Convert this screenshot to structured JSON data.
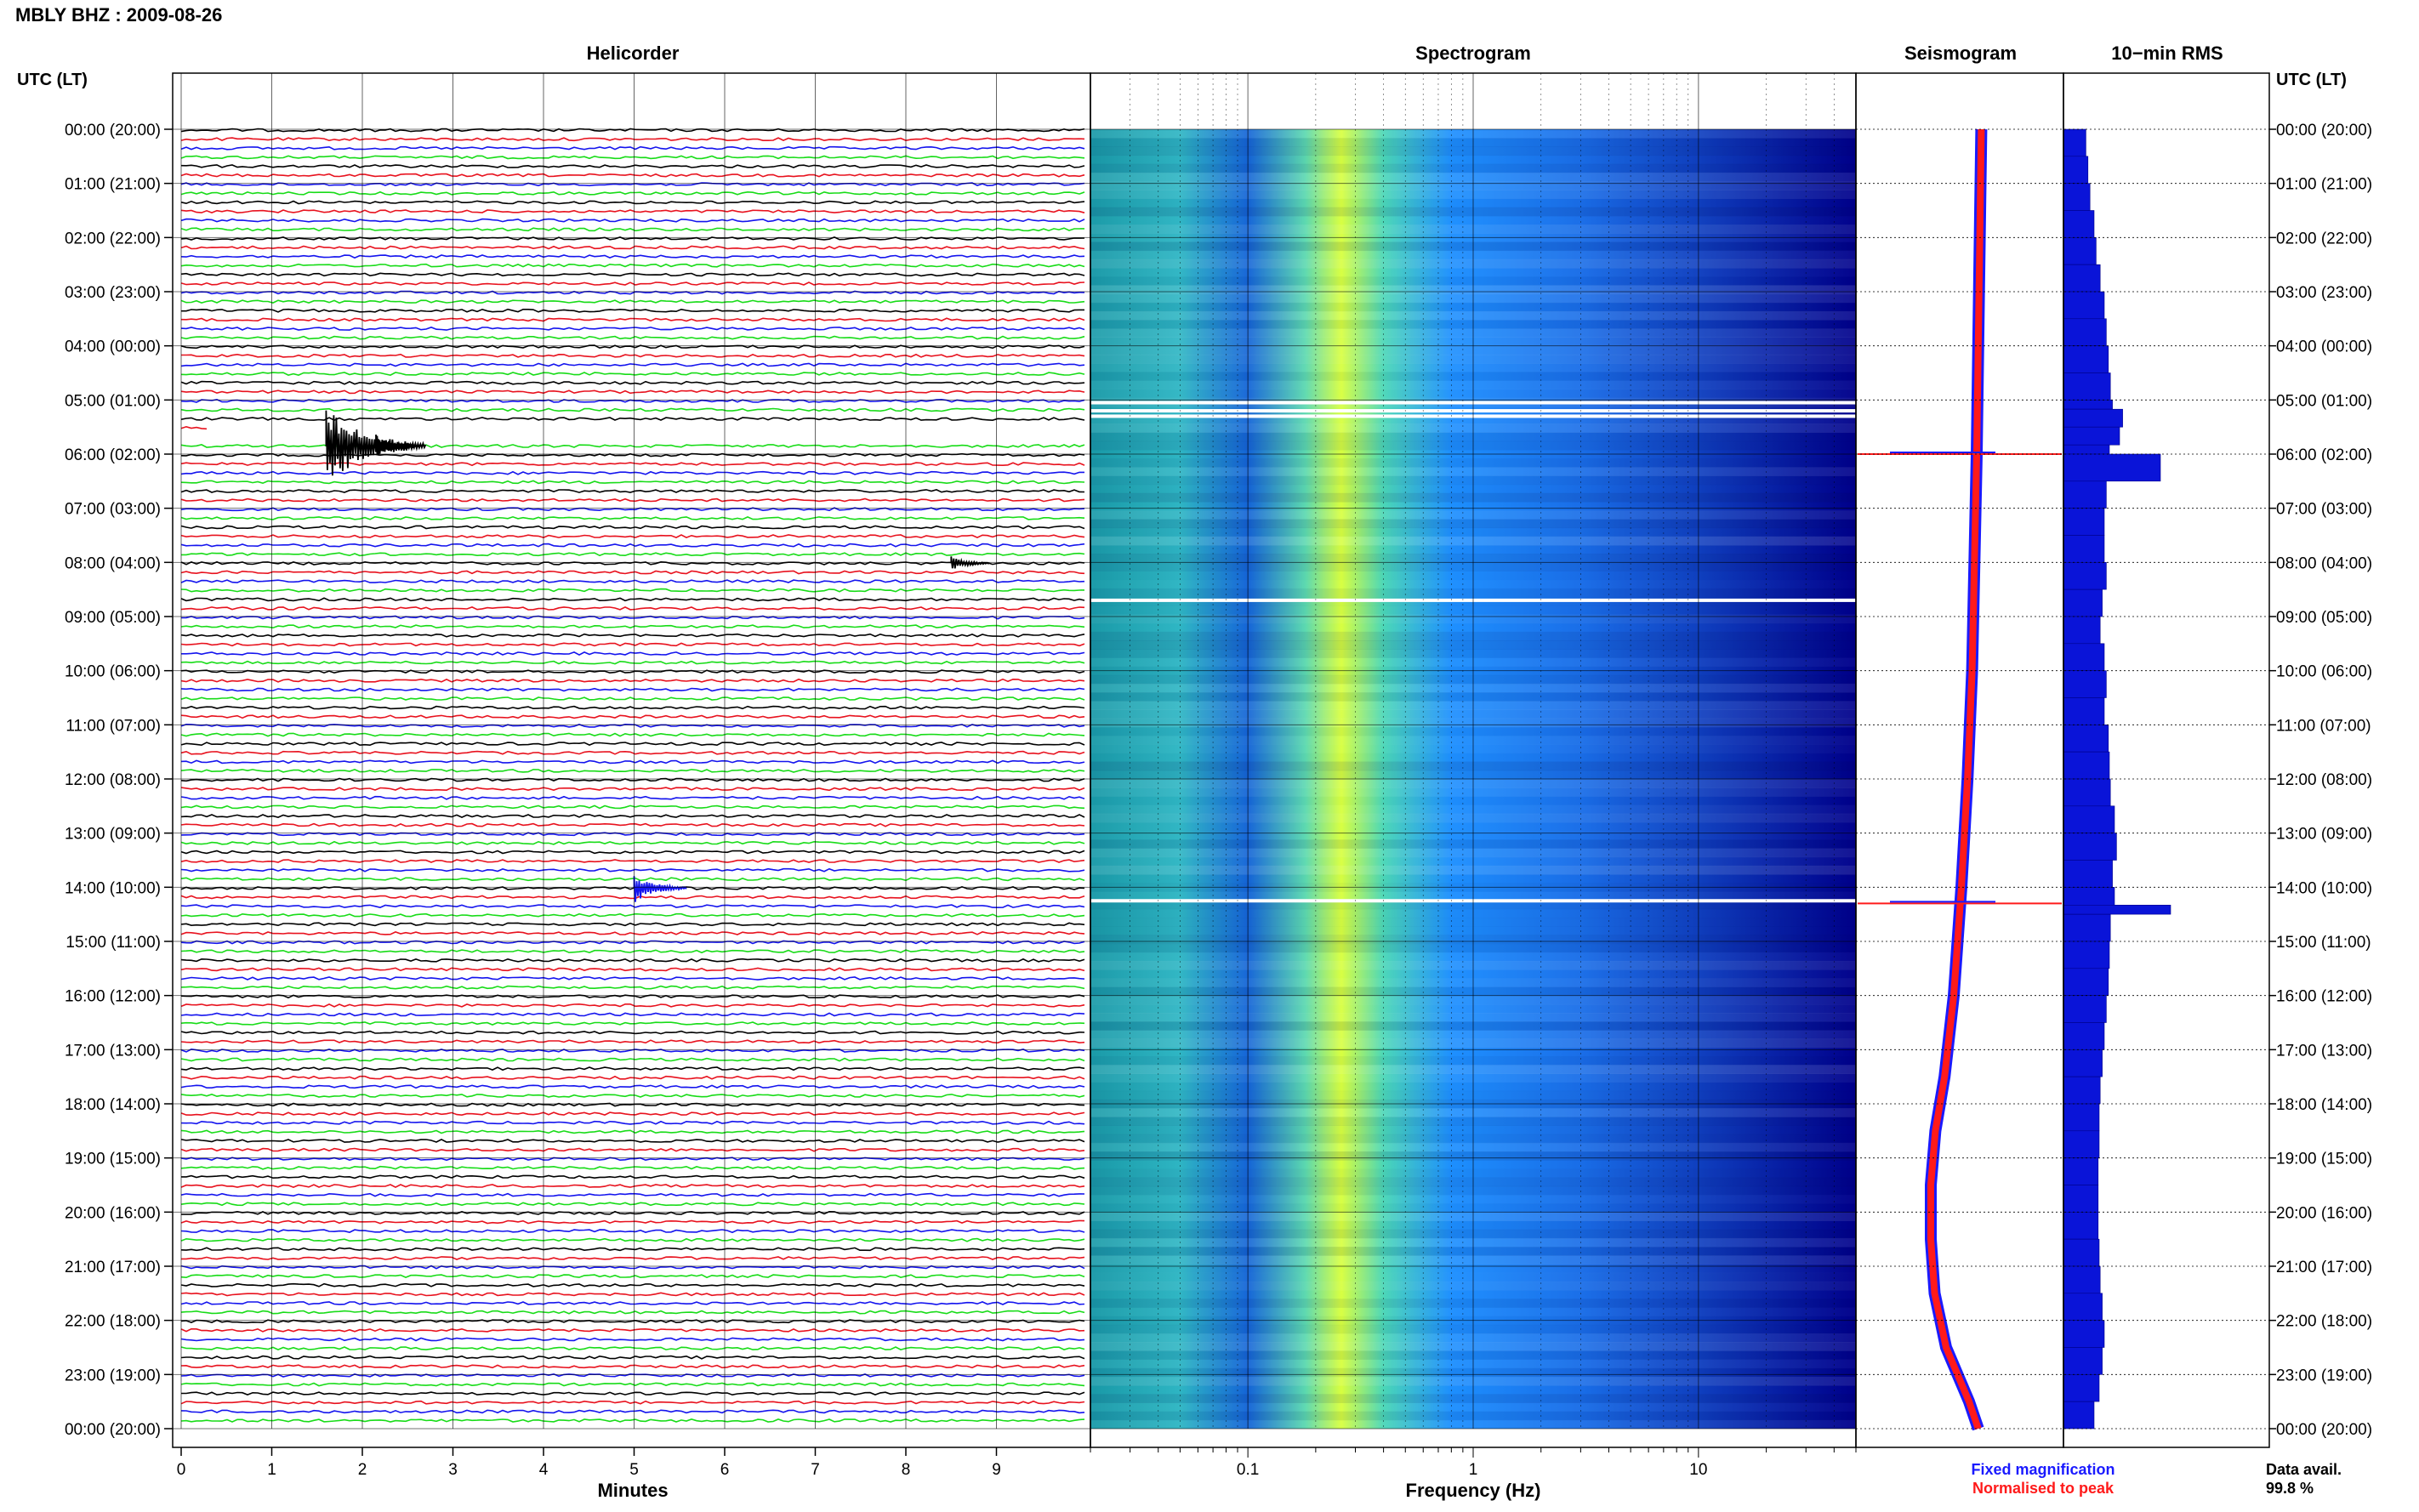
{
  "header": {
    "station_title": "MBLY BHZ : 2009-08-26"
  },
  "left_axis_label": "UTC (LT)",
  "right_axis_label": "UTC (LT)",
  "panels": {
    "helicorder": {
      "title": "Helicorder",
      "xlabel": "Minutes"
    },
    "spectrogram": {
      "title": "Spectrogram",
      "xlabel": "Frequency (Hz)"
    },
    "seismogram": {
      "title": "Seismogram"
    },
    "rms": {
      "title": "10−min RMS"
    }
  },
  "legend": {
    "fixed_label": "Fixed magnification",
    "normalised_label": "Normalised to peak",
    "fixed_color": "#1a1aff",
    "normalised_color": "#ff1a1a"
  },
  "availability": {
    "label": "Data avail.",
    "value": "99.8 %"
  },
  "colors": {
    "trace_colors": [
      "#000000",
      "#e8121e",
      "#1414ee",
      "#18dc18"
    ],
    "spec_low": "#00008b",
    "spec_mid": "#1e90ff",
    "spec_high": "#d8ff40",
    "rms_fill": "#0a14d8"
  },
  "chart_data": [
    {
      "type": "line",
      "name_ref": "helicorder",
      "title": "Helicorder",
      "xlabel": "Minutes",
      "xlim": [
        0,
        10
      ],
      "x_ticks": [
        "0",
        "1",
        "2",
        "3",
        "4",
        "5",
        "6",
        "7",
        "8",
        "9"
      ],
      "rows_per_hour": 6,
      "y_ticks_utc": [
        "00:00 (20:00)",
        "01:00 (21:00)",
        "02:00 (22:00)",
        "03:00 (23:00)",
        "04:00 (00:00)",
        "05:00 (01:00)",
        "06:00 (02:00)",
        "07:00 (03:00)",
        "08:00 (04:00)",
        "09:00 (05:00)",
        "10:00 (06:00)",
        "11:00 (07:00)",
        "12:00 (08:00)",
        "13:00 (09:00)",
        "14:00 (10:00)",
        "15:00 (11:00)",
        "16:00 (12:00)",
        "17:00 (13:00)",
        "18:00 (14:00)",
        "19:00 (15:00)",
        "20:00 (16:00)",
        "21:00 (17:00)",
        "22:00 (18:00)",
        "23:00 (19:00)",
        "00:00 (20:00)"
      ],
      "events": [
        {
          "hour": 5,
          "row": 5,
          "minute": 1.6,
          "amplitude": 2.2,
          "color_index": 0
        },
        {
          "hour": 5,
          "row": 5,
          "minute": 2.15,
          "amplitude": 0.6,
          "color_index": 0
        },
        {
          "hour": 8,
          "row": 0,
          "minute": 8.5,
          "amplitude": 0.4,
          "color_index": 0
        },
        {
          "hour": 14,
          "row": 0,
          "minute": 5.0,
          "amplitude": 0.8,
          "color_index": 2
        }
      ],
      "gaps": [
        {
          "hour": 5,
          "row": 3,
          "from_minute": 0.3,
          "to_minute": 10
        },
        {
          "hour": 5,
          "row": 4,
          "from_minute": 0,
          "to_minute": 10
        }
      ]
    },
    {
      "type": "heatmap",
      "name_ref": "spectrogram",
      "title": "Spectrogram",
      "xlabel": "Frequency (Hz)",
      "x_scale": "log",
      "xlim": [
        0.02,
        50
      ],
      "x_ticks": [
        0.1,
        1,
        10
      ],
      "x_tick_labels": [
        "0.1",
        "1",
        "10"
      ],
      "peak_band_hz": [
        0.18,
        0.4
      ],
      "white_lines_hour": [
        5.05,
        5.2,
        5.3,
        8.7,
        14.25
      ]
    },
    {
      "type": "line",
      "name_ref": "seismogram",
      "title": "Seismogram",
      "series": [
        {
          "name": "Fixed magnification",
          "x_hour": [
            0,
            2,
            4,
            6,
            8,
            10,
            12,
            14,
            16,
            17.5,
            18.5,
            19.5,
            20.5,
            21.5,
            22.5,
            23.5,
            24
          ],
          "amplitude_offset": [
            0.66,
            0.64,
            0.62,
            0.6,
            0.57,
            0.54,
            0.48,
            0.4,
            0.3,
            0.18,
            0.06,
            0.0,
            0.0,
            0.05,
            0.2,
            0.5,
            0.62
          ]
        },
        {
          "name": "Normalised to peak",
          "x_hour": [
            0,
            2,
            4,
            6,
            8,
            10,
            12,
            14,
            16,
            17.5,
            18.5,
            19.5,
            20.5,
            21.5,
            22.5,
            23.5,
            24
          ],
          "amplitude_offset": [
            0.66,
            0.64,
            0.62,
            0.6,
            0.57,
            0.54,
            0.48,
            0.4,
            0.3,
            0.18,
            0.06,
            0.0,
            0.0,
            0.05,
            0.2,
            0.5,
            0.62
          ]
        }
      ],
      "spikes_hour": [
        6.0,
        14.3
      ]
    },
    {
      "type": "bar",
      "name_ref": "rms",
      "title": "10−min RMS",
      "x_hour": [
        0,
        0.5,
        1,
        1.5,
        2,
        2.5,
        3,
        3.5,
        4,
        4.5,
        5,
        5.17,
        5.5,
        5.83,
        6,
        6.5,
        7,
        7.5,
        8,
        8.5,
        9,
        9.5,
        10,
        10.5,
        11,
        11.5,
        12,
        12.5,
        13,
        13.5,
        14,
        14.33,
        14.5,
        15,
        15.5,
        16,
        16.5,
        17,
        17.5,
        18,
        18.5,
        19,
        19.5,
        20,
        20.5,
        21,
        21.5,
        22,
        22.5,
        23,
        23.5
      ],
      "values": [
        0.22,
        0.24,
        0.26,
        0.3,
        0.32,
        0.36,
        0.4,
        0.42,
        0.44,
        0.46,
        0.48,
        0.58,
        0.55,
        0.45,
        0.95,
        0.42,
        0.4,
        0.4,
        0.42,
        0.38,
        0.36,
        0.4,
        0.42,
        0.4,
        0.44,
        0.45,
        0.46,
        0.5,
        0.52,
        0.48,
        0.5,
        1.05,
        0.46,
        0.45,
        0.44,
        0.42,
        0.4,
        0.38,
        0.36,
        0.35,
        0.35,
        0.34,
        0.34,
        0.34,
        0.35,
        0.36,
        0.38,
        0.4,
        0.38,
        0.35,
        0.3
      ]
    }
  ]
}
